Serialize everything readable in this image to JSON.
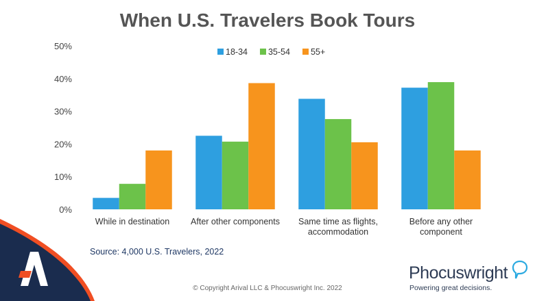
{
  "chart_data": {
    "type": "bar",
    "title": "When U.S. Travelers Book Tours",
    "categories": [
      [
        "While in destination"
      ],
      [
        "After other components"
      ],
      [
        "Same time as flights,",
        "accommodation"
      ],
      [
        "Before any other",
        "component"
      ]
    ],
    "series": [
      {
        "name": "18-34",
        "color": "#2e9fe0",
        "values": [
          3.5,
          22.5,
          33.8,
          37.2
        ]
      },
      {
        "name": "35-54",
        "color": "#6cc24a",
        "values": [
          7.8,
          20.7,
          27.6,
          38.9
        ]
      },
      {
        "name": "55+",
        "color": "#f7941d",
        "values": [
          18.0,
          38.6,
          20.5,
          18.0
        ]
      }
    ],
    "ylim": [
      0,
      50
    ],
    "yticks": [
      0,
      10,
      20,
      30,
      40,
      50
    ],
    "ytick_format": "percent",
    "xlabel": "",
    "ylabel": "",
    "grid": false,
    "legend_position": "top-center"
  },
  "source": "Source: 4,000 U.S. Travelers, 2022",
  "copyright": "© Copyright Arival LLC & Phocuswright Inc. 2022",
  "logo": {
    "name": "Phocuswright",
    "tagline": "Powering great decisions."
  },
  "colors": {
    "corner_navy": "#1a2c4e",
    "corner_orange": "#f04e23",
    "arival_mark": "#ffffff"
  }
}
